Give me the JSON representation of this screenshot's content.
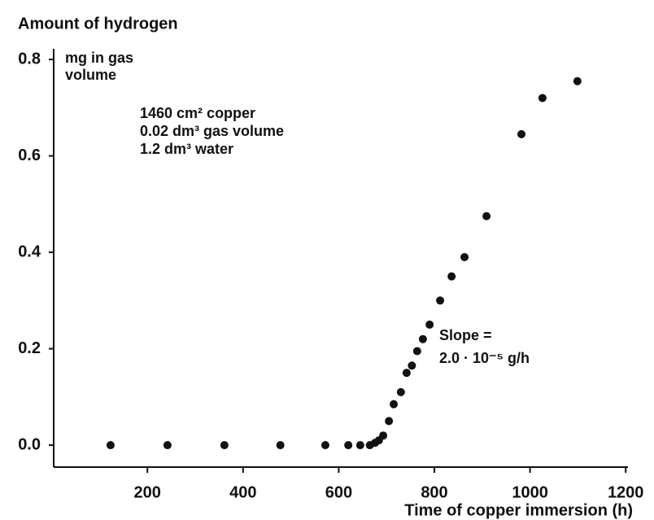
{
  "chart_data": {
    "type": "scatter",
    "title": "Amount of hydrogen",
    "y_unit": [
      "mg in gas",
      "volume"
    ],
    "xlabel": "Time of copper immersion (h)",
    "annotations": [
      "1460 cm² copper",
      "0.02 dm³ gas volume",
      "1.2 dm³ water"
    ],
    "slope_annotation": [
      "Slope =",
      "2.0 · 10⁻⁵ g/h"
    ],
    "color": "#111111",
    "x": [
      123,
      242,
      361,
      478,
      572,
      620,
      645,
      665,
      676,
      684,
      693,
      705,
      715,
      730,
      742,
      753,
      764,
      776,
      790,
      812,
      836,
      863,
      909,
      982,
      1026,
      1099
    ],
    "values": [
      0,
      0,
      0,
      0,
      0,
      0,
      0,
      0,
      0.005,
      0.01,
      0.02,
      0.05,
      0.085,
      0.11,
      0.15,
      0.165,
      0.195,
      0.22,
      0.25,
      0.3,
      0.35,
      0.39,
      0.475,
      0.645,
      0.72,
      0.755
    ],
    "xlim": [
      0,
      1200
    ],
    "xticks": [
      200,
      400,
      600,
      800,
      1000,
      1200
    ],
    "ylim": [
      -0.045,
      0.82
    ],
    "yticks": [
      {
        "value": 0,
        "label": "0.0"
      },
      {
        "value": 0.2,
        "label": "0.2"
      },
      {
        "value": 0.4,
        "label": "0.4"
      },
      {
        "value": 0.6,
        "label": "0.6"
      },
      {
        "value": 0.8,
        "label": "0.8"
      }
    ]
  }
}
